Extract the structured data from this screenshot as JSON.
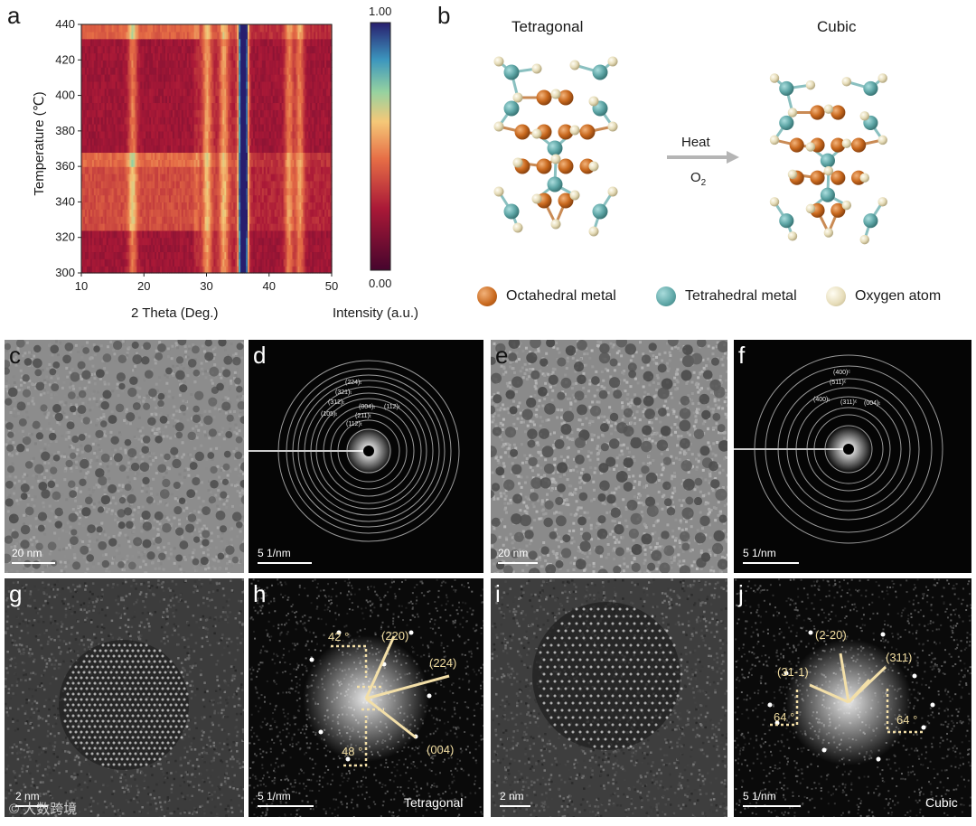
{
  "panels": {
    "a": "a",
    "b": "b",
    "c": "c",
    "d": "d",
    "e": "e",
    "f": "f",
    "g": "g",
    "h": "h",
    "i": "i",
    "j": "j"
  },
  "chart_data": {
    "type": "heatmap",
    "xlabel": "2 Theta (Deg.)",
    "ylabel": "Temperature (℃)",
    "xlim": [
      10,
      50
    ],
    "ylim": [
      300,
      440
    ],
    "x_ticks": [
      "10",
      "20",
      "30",
      "40",
      "50"
    ],
    "y_ticks": [
      "300",
      "320",
      "340",
      "360",
      "380",
      "400",
      "420",
      "440"
    ],
    "colorbar": {
      "label": "Intensity (a.u.)",
      "max": "1.00",
      "min": "0.00"
    },
    "peaks_2theta": [
      18.2,
      30.1,
      32.8,
      35.6,
      36.2,
      43.2,
      44.9
    ],
    "transition_temperatures": [
      322,
      362,
      432
    ]
  },
  "structure": {
    "left_title": "Tetragonal",
    "right_title": "Cubic",
    "arrow_top": "Heat",
    "arrow_bottom_main": "O",
    "arrow_bottom_sub": "2",
    "legend": [
      {
        "label": "Octahedral metal",
        "color": "#d37a2c"
      },
      {
        "label": "Tetrahedral metal",
        "color": "#5fa8a8"
      },
      {
        "label": "Oxygen atom",
        "color": "#ede6c8"
      }
    ]
  },
  "scalebars": {
    "c": "20 nm",
    "d": "5 1/nm",
    "e": "20 nm",
    "f": "5 1/nm",
    "g": "2 nm",
    "h": "5 1/nm",
    "i": "2 nm",
    "j": "5 1/nm"
  },
  "saed_d": [
    "(224)ₜ",
    "(321)ₜ",
    "(312)ₜ",
    "(105)ₜ",
    "(004)ₜ",
    "(112)ₜ",
    "(211)ₜ",
    "(112)ₜ"
  ],
  "saed_f": [
    "(400)ᶜ",
    "(511)ᶜ",
    "(400)ₜ",
    "(311)ᶜ",
    "(004)ₜ"
  ],
  "fft_h": {
    "angle_top": "42 °",
    "angle_bottom": "48 °",
    "s1": "(220)",
    "s2": "(224)",
    "s3": "(004)",
    "phase": "Tetragonal"
  },
  "fft_j": {
    "s1": "(2-20)",
    "s2": "(311)",
    "s3": "(31-1)",
    "angle_left": "64 °",
    "angle_right": "64 °",
    "phase": "Cubic"
  },
  "watermark": "© 大数跨境"
}
